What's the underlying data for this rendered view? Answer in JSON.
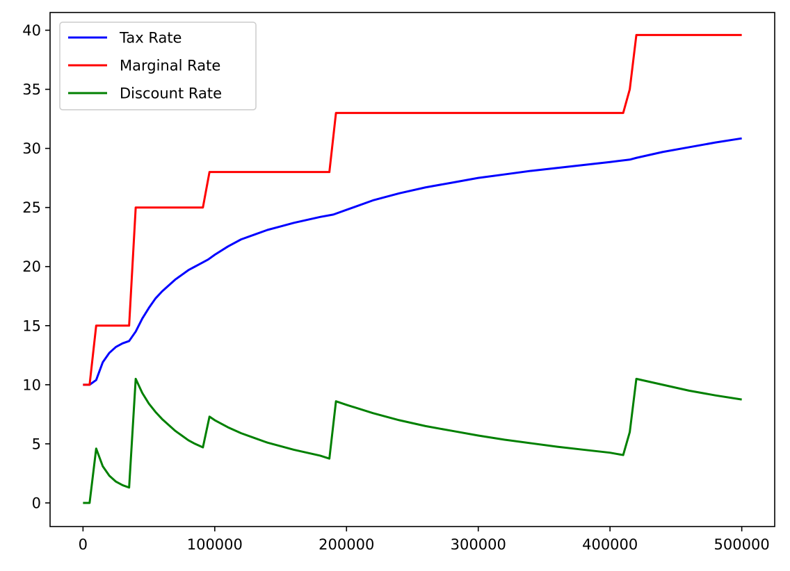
{
  "chart_data": {
    "type": "line",
    "title": "",
    "xlabel": "",
    "ylabel": "",
    "xlim": [
      -25000,
      525000
    ],
    "ylim": [
      -2,
      41.5
    ],
    "xticks": [
      0,
      100000,
      200000,
      300000,
      400000,
      500000
    ],
    "xtick_labels": [
      "0",
      "100000",
      "200000",
      "300000",
      "400000",
      "500000"
    ],
    "yticks": [
      0,
      5,
      10,
      15,
      20,
      25,
      30,
      35,
      40
    ],
    "ytick_labels": [
      "0",
      "5",
      "10",
      "15",
      "20",
      "25",
      "30",
      "35",
      "40"
    ],
    "grid": false,
    "legend_position": "top-left",
    "series": [
      {
        "name": "Tax Rate",
        "color": "#0000ff",
        "x": [
          0,
          5000,
          10000,
          15000,
          20000,
          25000,
          30000,
          35000,
          40000,
          45000,
          50000,
          55000,
          60000,
          65000,
          70000,
          75000,
          80000,
          85000,
          90000,
          95000,
          100000,
          110000,
          120000,
          130000,
          140000,
          150000,
          160000,
          170000,
          180000,
          190000,
          200000,
          220000,
          240000,
          260000,
          280000,
          300000,
          320000,
          340000,
          360000,
          380000,
          400000,
          415000,
          420000,
          440000,
          460000,
          480000,
          500000
        ],
        "values": [
          10.0,
          10.0,
          10.4,
          11.9,
          12.7,
          13.2,
          13.5,
          13.7,
          14.5,
          15.6,
          16.5,
          17.3,
          17.9,
          18.4,
          18.9,
          19.3,
          19.7,
          20.0,
          20.3,
          20.6,
          21.0,
          21.7,
          22.3,
          22.7,
          23.1,
          23.4,
          23.7,
          23.95,
          24.2,
          24.4,
          24.8,
          25.6,
          26.2,
          26.7,
          27.1,
          27.5,
          27.8,
          28.1,
          28.35,
          28.6,
          28.85,
          29.05,
          29.2,
          29.7,
          30.1,
          30.5,
          30.85
        ]
      },
      {
        "name": "Marginal Rate",
        "color": "#ff0000",
        "x": [
          0,
          5000,
          10000,
          35000,
          40000,
          91000,
          96000,
          187000,
          192000,
          410000,
          415000,
          420000,
          500000
        ],
        "values": [
          10,
          10,
          15,
          15,
          25,
          25,
          28,
          28,
          33,
          33,
          35,
          39.6,
          39.6
        ]
      },
      {
        "name": "Discount Rate",
        "color": "#008000",
        "x": [
          0,
          5000,
          10000,
          15000,
          20000,
          25000,
          30000,
          35000,
          40000,
          45000,
          50000,
          55000,
          60000,
          65000,
          70000,
          75000,
          80000,
          85000,
          91000,
          96000,
          100000,
          110000,
          120000,
          130000,
          140000,
          150000,
          160000,
          170000,
          180000,
          187000,
          192000,
          200000,
          220000,
          240000,
          260000,
          280000,
          300000,
          320000,
          340000,
          360000,
          380000,
          400000,
          410000,
          415000,
          420000,
          440000,
          460000,
          480000,
          500000
        ],
        "values": [
          0.0,
          0.0,
          4.6,
          3.1,
          2.3,
          1.8,
          1.5,
          1.3,
          10.5,
          9.3,
          8.4,
          7.7,
          7.1,
          6.6,
          6.1,
          5.7,
          5.3,
          5.0,
          4.7,
          7.3,
          7.0,
          6.4,
          5.9,
          5.5,
          5.1,
          4.8,
          4.5,
          4.25,
          4.0,
          3.75,
          8.6,
          8.3,
          7.6,
          7.0,
          6.5,
          6.1,
          5.7,
          5.35,
          5.05,
          4.75,
          4.5,
          4.25,
          4.05,
          6.0,
          10.5,
          10.0,
          9.5,
          9.1,
          8.75
        ]
      }
    ]
  }
}
